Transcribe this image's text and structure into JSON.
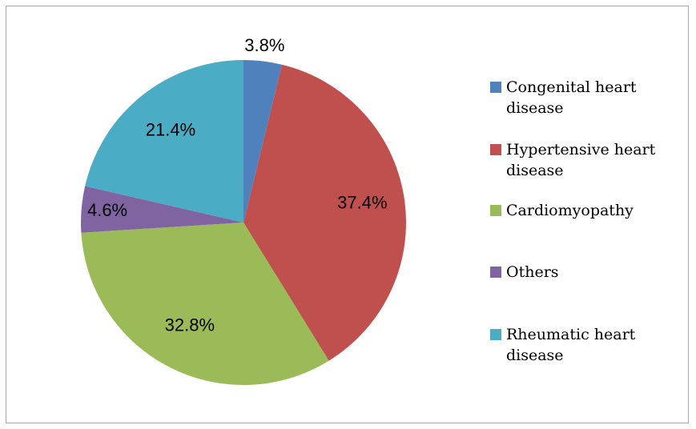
{
  "chart_data": {
    "type": "pie",
    "categories": [
      "Congenital heart disease",
      "Hypertensive heart disease",
      "Cardiomyopathy",
      "Others",
      "Rheumatic heart disease"
    ],
    "values": [
      3.8,
      37.4,
      32.8,
      4.6,
      21.4
    ],
    "value_labels": [
      "3.8%",
      "37.4%",
      "32.8%",
      "4.6%",
      "21.4%"
    ],
    "colors": [
      "#4f81bd",
      "#c0504d",
      "#9bbb59",
      "#8064a2",
      "#4bacc6"
    ],
    "legend": "right"
  }
}
